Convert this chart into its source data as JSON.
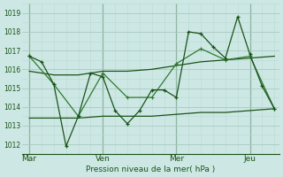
{
  "bg_color": "#cde8e4",
  "grid_color_major": "#a8c8c0",
  "grid_color_minor": "#bad8d2",
  "line_dark": "#1a5218",
  "line_med": "#2e7a2e",
  "xlabel": "Pression niveau de la mer( hPa )",
  "ylim": [
    1011.5,
    1019.5
  ],
  "yticks": [
    1012,
    1013,
    1014,
    1015,
    1016,
    1017,
    1018,
    1019
  ],
  "xtick_labels": [
    "Mar",
    "Ven",
    "Mer",
    "Jeu"
  ],
  "xtick_positions": [
    0,
    30,
    60,
    90
  ],
  "xlim": [
    -3,
    102
  ],
  "vline_positions": [
    0,
    30,
    60,
    90
  ],
  "series_jagged1_x": [
    0,
    5,
    10,
    15,
    20,
    25,
    30,
    35,
    40,
    45,
    50,
    55,
    60,
    65,
    70,
    75,
    80,
    85,
    90,
    95,
    100
  ],
  "series_jagged1_y": [
    1016.7,
    1016.4,
    1015.2,
    1011.9,
    1013.5,
    1015.8,
    1015.6,
    1013.8,
    1013.1,
    1013.8,
    1014.9,
    1014.9,
    1014.5,
    1018.0,
    1017.9,
    1017.2,
    1016.6,
    1018.8,
    1016.8,
    1015.1,
    1013.9
  ],
  "series_jagged2_x": [
    0,
    10,
    20,
    30,
    40,
    50,
    60,
    70,
    80,
    90,
    100
  ],
  "series_jagged2_y": [
    1016.7,
    1015.2,
    1013.5,
    1015.8,
    1014.5,
    1014.5,
    1016.3,
    1017.1,
    1016.5,
    1016.7,
    1013.9
  ],
  "series_flat_upper_x": [
    0,
    10,
    20,
    30,
    40,
    50,
    60,
    70,
    80,
    90,
    100
  ],
  "series_flat_upper_y": [
    1015.9,
    1015.7,
    1015.7,
    1015.9,
    1015.9,
    1016.0,
    1016.2,
    1016.4,
    1016.5,
    1016.6,
    1016.7
  ],
  "series_flat_lower_x": [
    0,
    10,
    20,
    30,
    40,
    50,
    60,
    70,
    80,
    90,
    100
  ],
  "series_flat_lower_y": [
    1013.4,
    1013.4,
    1013.4,
    1013.5,
    1013.5,
    1013.5,
    1013.6,
    1013.7,
    1013.7,
    1013.8,
    1013.9
  ]
}
